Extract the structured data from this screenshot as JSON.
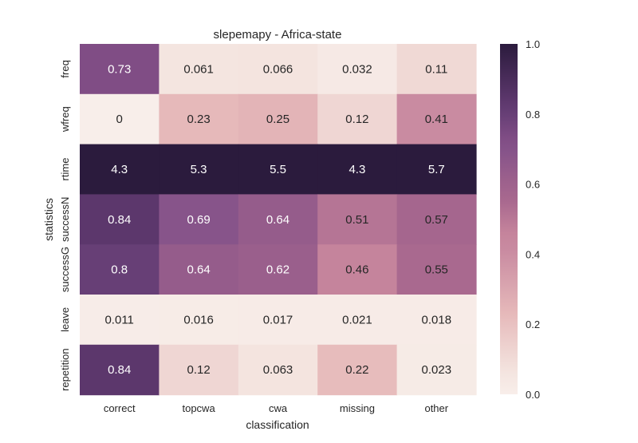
{
  "chart_data": {
    "type": "heatmap",
    "title": "slepemapy - Africa-state",
    "xlabel": "classification",
    "ylabel": "statistics",
    "columns": [
      "correct",
      "topcwa",
      "cwa",
      "missing",
      "other"
    ],
    "rows": [
      "freq",
      "wfreq",
      "rtime",
      "successN",
      "successG",
      "leave",
      "repetition"
    ],
    "values": [
      [
        0.73,
        0.061,
        0.066,
        0.032,
        0.11
      ],
      [
        0,
        0.23,
        0.25,
        0.12,
        0.41
      ],
      [
        4.3,
        5.3,
        5.5,
        4.3,
        5.7
      ],
      [
        0.84,
        0.69,
        0.64,
        0.51,
        0.57
      ],
      [
        0.8,
        0.64,
        0.62,
        0.46,
        0.55
      ],
      [
        0.011,
        0.016,
        0.017,
        0.021,
        0.018
      ],
      [
        0.84,
        0.12,
        0.063,
        0.22,
        0.023
      ]
    ],
    "value_labels": [
      [
        "0.73",
        "0.061",
        "0.066",
        "0.032",
        "0.11"
      ],
      [
        "0",
        "0.23",
        "0.25",
        "0.12",
        "0.41"
      ],
      [
        "4.3",
        "5.3",
        "5.5",
        "4.3",
        "5.7"
      ],
      [
        "0.84",
        "0.69",
        "0.64",
        "0.51",
        "0.57"
      ],
      [
        "0.8",
        "0.64",
        "0.62",
        "0.46",
        "0.55"
      ],
      [
        "0.011",
        "0.016",
        "0.017",
        "0.021",
        "0.018"
      ],
      [
        "0.84",
        "0.12",
        "0.063",
        "0.22",
        "0.023"
      ]
    ],
    "colorbar": {
      "range": [
        0.0,
        1.0
      ],
      "ticks": [
        0.0,
        0.2,
        0.4,
        0.6,
        0.8,
        1.0
      ],
      "tick_labels": [
        "0.0",
        "0.2",
        "0.4",
        "0.6",
        "0.8",
        "1.0"
      ],
      "color_low": "#f8eeea",
      "color_high": "#2b1b3d"
    },
    "colormap_stops": [
      {
        "v": 0.0,
        "color": "#f8eeea"
      },
      {
        "v": 0.06,
        "color": "#f4e5e0"
      },
      {
        "v": 0.12,
        "color": "#efd6d3"
      },
      {
        "v": 0.23,
        "color": "#e6b9ba"
      },
      {
        "v": 0.41,
        "color": "#c98ba1"
      },
      {
        "v": 0.46,
        "color": "#c5849c"
      },
      {
        "v": 0.55,
        "color": "#a9698f"
      },
      {
        "v": 0.62,
        "color": "#9a5f8c"
      },
      {
        "v": 0.69,
        "color": "#87548a"
      },
      {
        "v": 0.73,
        "color": "#804d85"
      },
      {
        "v": 0.8,
        "color": "#673f76"
      },
      {
        "v": 0.84,
        "color": "#5c376c"
      },
      {
        "v": 1.0,
        "color": "#2b1b3d"
      }
    ],
    "grid": false,
    "legend": "colorbar-right",
    "annot_color_dark": "#262626",
    "annot_color_light": "#ffffff"
  }
}
